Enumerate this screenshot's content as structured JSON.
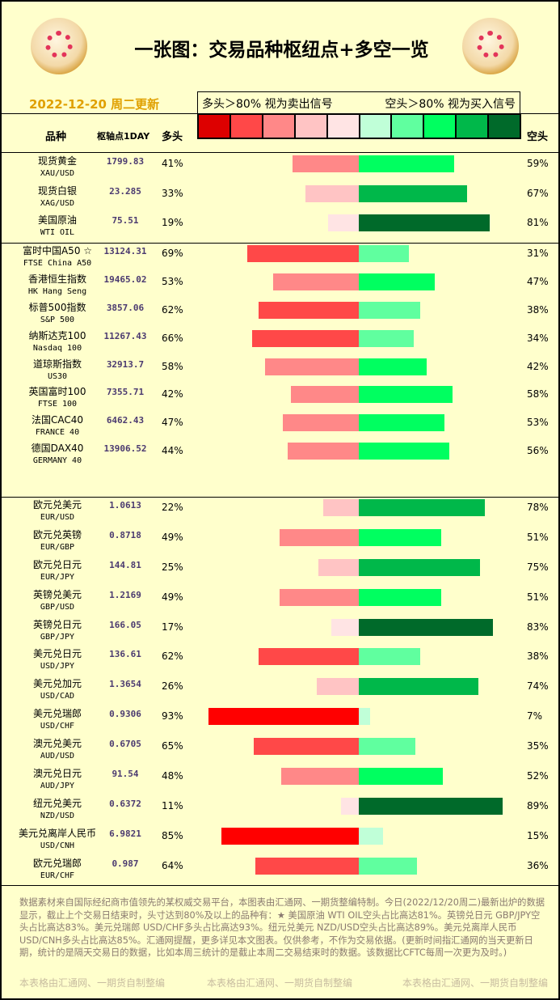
{
  "header": {
    "title": "一张图：交易品种枢纽点+多空一览",
    "date": "2022-12-20 周二更新",
    "legend_long": "多头＞80% 视为卖出信号",
    "legend_short": "空头＞80% 视为买入信号"
  },
  "legend_colors": [
    "#dd0000",
    "#ff4848",
    "#ff8888",
    "#ffc4c4",
    "#ffe4e4",
    "#c0ffd8",
    "#60ff9f",
    "#00ff60",
    "#00b84a",
    "#006a2a"
  ],
  "columns": {
    "name": "品种",
    "pivot": "枢轴点1DAY",
    "long": "多头",
    "short": "空头"
  },
  "groups": [
    [
      {
        "cn": "现货黄金",
        "en": "XAU/USD",
        "pivot": "1799.83",
        "long": 41,
        "short": 59
      },
      {
        "cn": "现货白银",
        "en": "XAG/USD",
        "pivot": "23.285",
        "long": 33,
        "short": 67
      },
      {
        "cn": "美国原油",
        "en": "WTI OIL",
        "pivot": "75.51",
        "long": 19,
        "short": 81
      }
    ],
    [
      {
        "cn": "富时中国A50 ☆",
        "en": "FTSE China A50",
        "pivot": "13124.31",
        "long": 69,
        "short": 31
      },
      {
        "cn": "香港恒生指数",
        "en": "HK Hang Seng",
        "pivot": "19465.02",
        "long": 53,
        "short": 47
      },
      {
        "cn": "标普500指数",
        "en": "S&P 500",
        "pivot": "3857.06",
        "long": 62,
        "short": 38
      },
      {
        "cn": "纳斯达克100",
        "en": "Nasdaq 100",
        "pivot": "11267.43",
        "long": 66,
        "short": 34
      },
      {
        "cn": "道琼斯指数",
        "en": "US30",
        "pivot": "32913.7",
        "long": 58,
        "short": 42
      },
      {
        "cn": "英国富时100",
        "en": "FTSE 100",
        "pivot": "7355.71",
        "long": 42,
        "short": 58
      },
      {
        "cn": "法国CAC40",
        "en": "FRANCE 40",
        "pivot": "6462.43",
        "long": 47,
        "short": 53
      },
      {
        "cn": "德国DAX40",
        "en": "GERMANY 40",
        "pivot": "13906.52",
        "long": 44,
        "short": 56
      }
    ],
    [
      {
        "cn": "欧元兑美元",
        "en": "EUR/USD",
        "pivot": "1.0613",
        "long": 22,
        "short": 78
      },
      {
        "cn": "欧元兑英镑",
        "en": "EUR/GBP",
        "pivot": "0.8718",
        "long": 49,
        "short": 51
      },
      {
        "cn": "欧元兑日元",
        "en": "EUR/JPY",
        "pivot": "144.81",
        "long": 25,
        "short": 75
      },
      {
        "cn": "英镑兑美元",
        "en": "GBP/USD",
        "pivot": "1.2169",
        "long": 49,
        "short": 51
      },
      {
        "cn": "英镑兑日元",
        "en": "GBP/JPY",
        "pivot": "166.05",
        "long": 17,
        "short": 83
      },
      {
        "cn": "美元兑日元",
        "en": "USD/JPY",
        "pivot": "136.61",
        "long": 62,
        "short": 38
      },
      {
        "cn": "美元兑加元",
        "en": "USD/CAD",
        "pivot": "1.3654",
        "long": 26,
        "short": 74
      },
      {
        "cn": "美元兑瑞郎",
        "en": "USD/CHF",
        "pivot": "0.9306",
        "long": 93,
        "short": 7
      },
      {
        "cn": "澳元兑美元",
        "en": "AUD/USD",
        "pivot": "0.6705",
        "long": 65,
        "short": 35
      },
      {
        "cn": "澳元兑日元",
        "en": "AUD/JPY",
        "pivot": "91.54",
        "long": 48,
        "short": 52
      },
      {
        "cn": "纽元兑美元",
        "en": "NZD/USD",
        "pivot": "0.6372",
        "long": 11,
        "short": 89
      },
      {
        "cn": "美元兑离岸人民币",
        "en": "USD/CNH",
        "pivot": "6.9821",
        "long": 85,
        "short": 15
      },
      {
        "cn": "欧元兑瑞郎",
        "en": "EUR/CHF",
        "pivot": "0.987",
        "long": 64,
        "short": 36
      }
    ]
  ],
  "footer": {
    "note": "数据素材来自国际经纪商市值领先的某权威交易平台，本图表由汇通网、一期货整编特制。今日(2022/12/20周二)最新出炉的数据显示，截止上个交易日结束时，头寸达到80%及以上的品种有：★ 美国原油 WTI OIL空头占比高达81%。英镑兑日元 GBP/JPY空头占比高达83%。美元兑瑞郎 USD/CHF多头占比高达93%。纽元兑美元 NZD/USD空头占比高达89%。美元兑离岸人民币 USD/CNH多头占比高达85%。汇通网提醒，更多详见本文图表。仅供参考，不作为交易依据。(更新时间指汇通网的当天更新日期，统计的是隔天交易日的数据，比如本周三统计的是截止本周二交易结束时的数据。该数据比CFTC每周一次更为及时。)",
    "credit": "本表格由汇通网、一期货自制整编"
  }
}
